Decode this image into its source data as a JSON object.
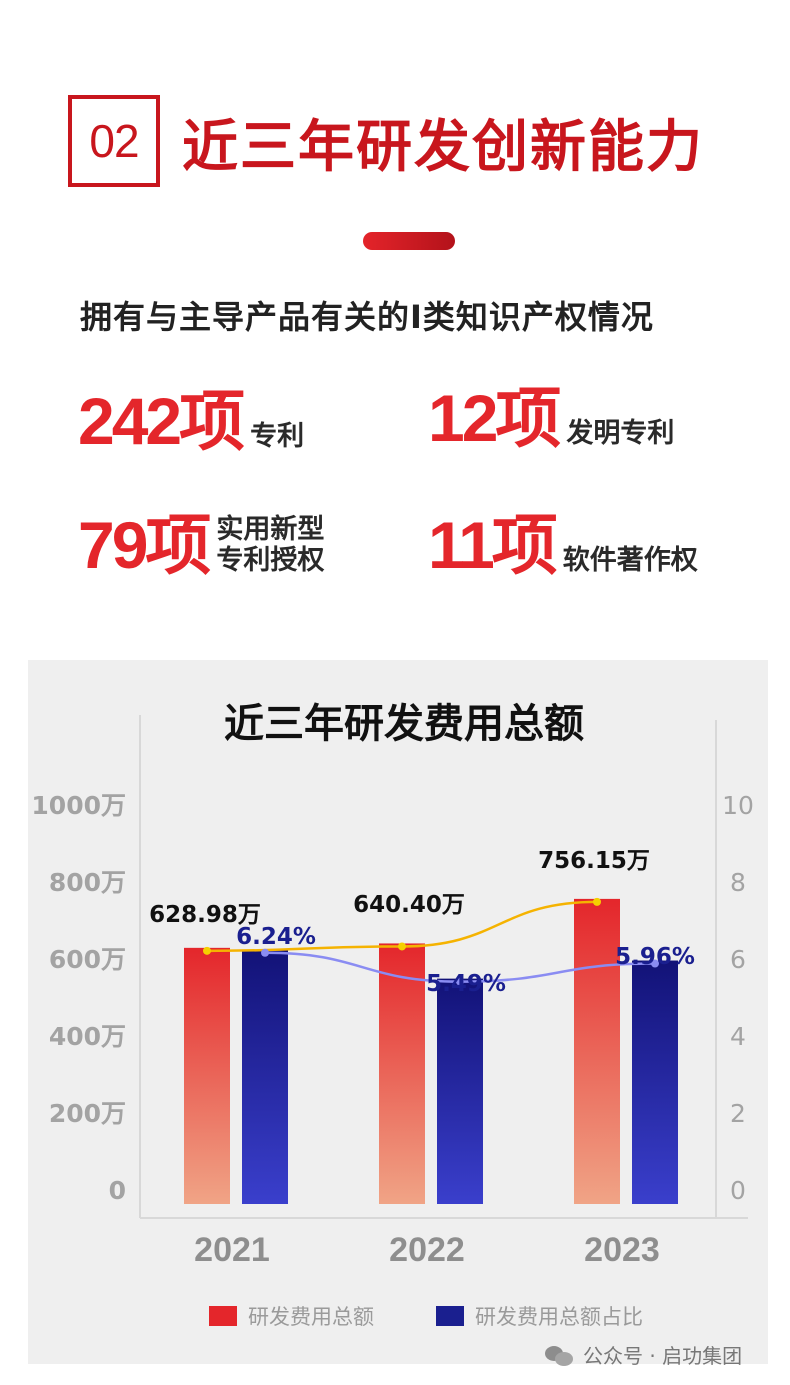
{
  "header": {
    "section_number": "02",
    "title": "近三年研发创新能力",
    "subtitle": "拥有与主导产品有关的I类知识产权情况"
  },
  "stats": [
    {
      "value": "242项",
      "label_line1": "专利",
      "label_line2": ""
    },
    {
      "value": "12项",
      "label_line1": "发明专利",
      "label_line2": ""
    },
    {
      "value": "79项",
      "label_line1": "实用新型",
      "label_line2": "专利授权"
    },
    {
      "value": "11项",
      "label_line1": "软件著作权",
      "label_line2": ""
    }
  ],
  "chart_data": {
    "type": "bar",
    "title": "近三年研发费用总额",
    "categories": [
      "2021",
      "2022",
      "2023"
    ],
    "left_axis": {
      "ticks": [
        "0",
        "200万",
        "400万",
        "600万",
        "800万",
        "1000万"
      ],
      "ylim": [
        0,
        1000
      ]
    },
    "right_axis": {
      "ticks": [
        "0",
        "2",
        "4",
        "6",
        "8",
        "10"
      ],
      "ylim": [
        0,
        10
      ]
    },
    "series": [
      {
        "name": "研发费用总额",
        "values": [
          628.98,
          640.4,
          756.15
        ],
        "labels": [
          "628.98万",
          "640.40万",
          "756.15万"
        ],
        "color": "#e4262b",
        "axis": "left"
      },
      {
        "name": "研发费用总额占比",
        "values": [
          6.24,
          5.49,
          5.96
        ],
        "labels": [
          "6.24%",
          "5.49%",
          "5.96%"
        ],
        "color": "#1a1f8f",
        "axis": "right"
      }
    ],
    "line_colors": {
      "total": "#f5b301",
      "ratio": "#8a8cf2"
    },
    "legend": "bottom",
    "grid": false
  },
  "watermark": {
    "text": "公众号 · 启功集团",
    "icon": "wechat-icon"
  }
}
